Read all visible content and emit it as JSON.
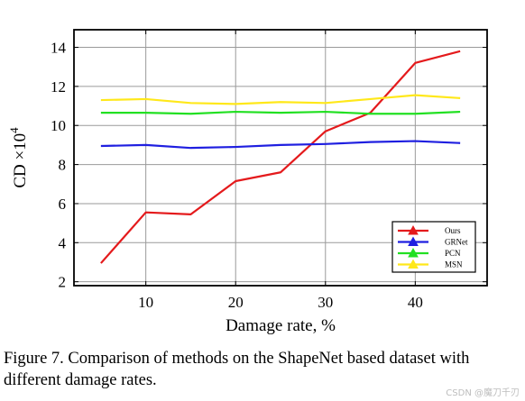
{
  "chart_data": {
    "type": "line",
    "xlabel": "Damage rate, %",
    "ylabel": "CD ×10",
    "ylabel_exponent": "4",
    "xlim": [
      2,
      48
    ],
    "ylim": [
      1.8,
      14.9
    ],
    "xticks": [
      10,
      20,
      30,
      40
    ],
    "yticks": [
      2,
      4,
      6,
      8,
      10,
      12,
      14
    ],
    "grid": true,
    "legend_position": "bottom-right",
    "x": [
      5,
      10,
      15,
      20,
      25,
      30,
      35,
      40,
      45
    ],
    "series": [
      {
        "name": "Ours",
        "color": "#e41a1c",
        "values": [
          2.95,
          5.55,
          5.45,
          7.15,
          7.6,
          9.7,
          10.65,
          13.2,
          13.8
        ]
      },
      {
        "name": "GRNet",
        "color": "#1f1fe0",
        "values": [
          8.95,
          9.0,
          8.85,
          8.9,
          9.0,
          9.05,
          9.15,
          9.2,
          9.1
        ]
      },
      {
        "name": "PCN",
        "color": "#22e022",
        "values": [
          10.65,
          10.65,
          10.6,
          10.7,
          10.65,
          10.7,
          10.6,
          10.6,
          10.7
        ]
      },
      {
        "name": "MSN",
        "color": "#ffe81a",
        "values": [
          11.3,
          11.35,
          11.15,
          11.1,
          11.2,
          11.15,
          11.35,
          11.55,
          11.4
        ]
      }
    ]
  },
  "caption": "Figure 7. Comparison of methods on the ShapeNet based dataset with different damage rates.",
  "watermark": "CSDN @魔刀千刃"
}
